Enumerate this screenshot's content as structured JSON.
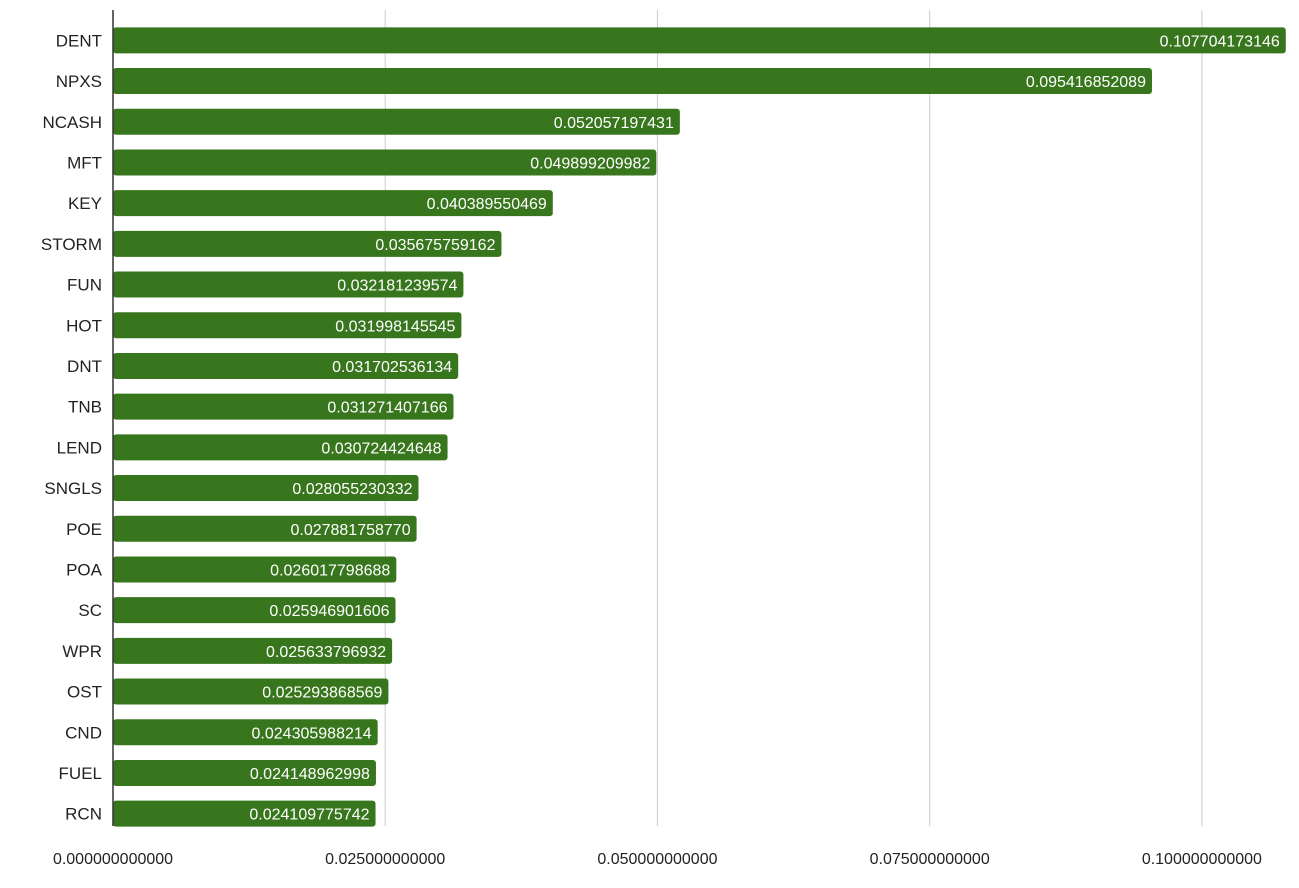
{
  "chart_data": {
    "type": "bar",
    "orientation": "horizontal",
    "categories": [
      "DENT",
      "NPXS",
      "NCASH",
      "MFT",
      "KEY",
      "STORM",
      "FUN",
      "HOT",
      "DNT",
      "TNB",
      "LEND",
      "SNGLS",
      "POE",
      "POA",
      "SC",
      "WPR",
      "OST",
      "CND",
      "FUEL",
      "RCN"
    ],
    "values": [
      0.107704173146,
      0.095416852089,
      0.052057197431,
      0.049899209982,
      0.040389550469,
      0.035675759162,
      0.032181239574,
      0.031998145545,
      0.031702536134,
      0.031271407166,
      0.030724424648,
      0.028055230332,
      0.02788175877,
      0.026017798688,
      0.025946901606,
      0.025633796932,
      0.025293868569,
      0.024305988214,
      0.024148962998,
      0.024109775742
    ],
    "value_labels": [
      "0.107704173146",
      "0.095416852089",
      "0.052057197431",
      "0.049899209982",
      "0.040389550469",
      "0.035675759162",
      "0.032181239574",
      "0.031998145545",
      "0.031702536134",
      "0.031271407166",
      "0.030724424648",
      "0.028055230332",
      "0.027881758770",
      "0.026017798688",
      "0.025946901606",
      "0.025633796932",
      "0.025293868569",
      "0.024305988214",
      "0.024148962998",
      "0.024109775742"
    ],
    "x_ticks": [
      0,
      0.025,
      0.05,
      0.075,
      0.1
    ],
    "x_tick_labels": [
      "0.000000000000",
      "0.025000000000",
      "0.050000000000",
      "0.075000000000",
      "0.100000000000"
    ],
    "xlim": [
      0,
      0.108
    ],
    "title": "",
    "xlabel": "",
    "ylabel": "",
    "grid": true,
    "legend": "none",
    "bar_color": "#38761d",
    "grid_color": "#cccccc",
    "axis_color": "#333333"
  }
}
